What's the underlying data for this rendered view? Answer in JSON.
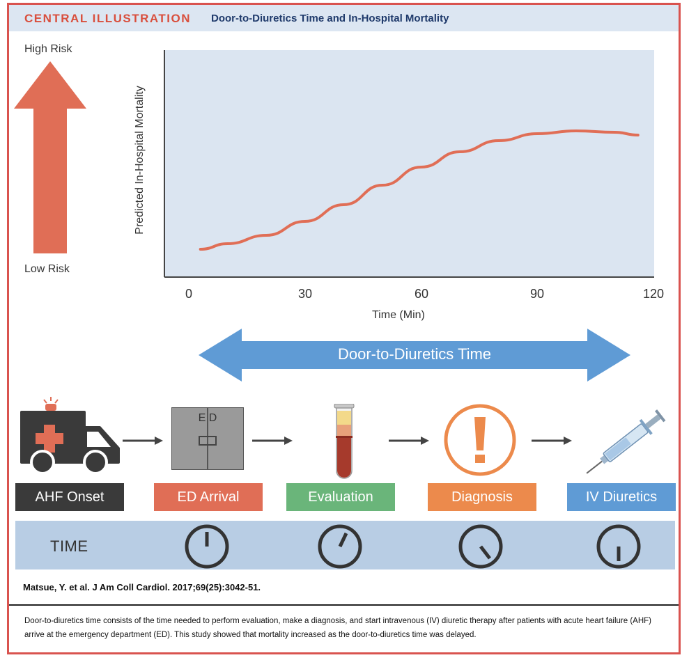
{
  "header": {
    "tag": "CENTRAL ILLUSTRATION",
    "title": "Door-to-Diuretics Time and In-Hospital Mortality"
  },
  "risk": {
    "high": "High Risk",
    "low": "Low Risk"
  },
  "chart_data": {
    "type": "line",
    "xlabel": "Time (Min)",
    "ylabel": "Predicted In-Hospital Mortality",
    "xlim": [
      0,
      120
    ],
    "xticks": [
      "0",
      "30",
      "60",
      "90",
      "120"
    ],
    "series": [
      {
        "x": [
          3,
          10,
          20,
          30,
          40,
          50,
          60,
          70,
          80,
          90,
          100,
          110,
          116
        ],
        "y": [
          0.05,
          0.09,
          0.15,
          0.25,
          0.37,
          0.51,
          0.64,
          0.75,
          0.83,
          0.88,
          0.9,
          0.89,
          0.87
        ]
      }
    ]
  },
  "door_arrow_label": "Door-to-Diuretics Time",
  "ed_door_text": "E D",
  "steps": [
    {
      "label": "AHF Onset",
      "color": "#3a3a3a"
    },
    {
      "label": "ED Arrival",
      "color": "#e06e56"
    },
    {
      "label": "Evaluation",
      "color": "#6ab57a"
    },
    {
      "label": "Diagnosis",
      "color": "#ec8a4c"
    },
    {
      "label": "IV Diuretics",
      "color": "#5f9bd5"
    }
  ],
  "timebar_label": "TIME",
  "colors": {
    "accent_red": "#d94f3d",
    "arrow_red": "#e06e56",
    "chart_bg": "#dbe5f1",
    "blue_arrow": "#5f9bd5",
    "dark": "#3a3a3a"
  },
  "citation": "Matsue, Y. et al. J Am Coll Cardiol. 2017;69(25):3042-51.",
  "caption": "Door-to-diuretics time consists of the time needed to perform evaluation, make a diagnosis, and start intravenous (IV) diuretic therapy after patients with acute heart failure (AHF) arrive at the emergency department (ED). This study showed that mortality increased as the door-to-diuretics time was delayed."
}
